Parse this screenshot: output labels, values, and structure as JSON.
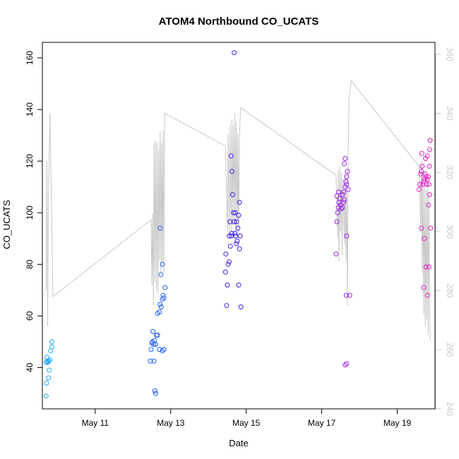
{
  "chart_data": {
    "type": "scatter",
    "title": "ATOM4 Northbound CO_UCATS",
    "xlabel": "Date",
    "ylabel": "CO_UCATS",
    "x_unit": "day of May",
    "xlim": [
      9.6,
      20.0
    ],
    "ylim": [
      24,
      166
    ],
    "y2lim": [
      240,
      364
    ],
    "x_ticks": [
      11,
      13,
      15,
      17,
      19
    ],
    "x_tick_labels": [
      "May 11",
      "May 13",
      "May 15",
      "May 17",
      "May 19"
    ],
    "y_ticks": [
      40,
      60,
      80,
      100,
      120,
      140,
      160
    ],
    "y2_ticks": [
      240,
      260,
      280,
      300,
      320,
      340,
      360
    ],
    "grid": false,
    "legend": "none",
    "colors": {
      "line": "#c8c8c8",
      "right_axis": "#c8c8c8",
      "frame": "#000000"
    },
    "series": [
      {
        "axis": "left",
        "kind": "points",
        "color": "#1aa9f5",
        "points": [
          [
            9.7,
            29
          ],
          [
            9.71,
            34
          ],
          [
            9.7,
            42
          ],
          [
            9.73,
            42.5
          ],
          [
            9.72,
            44
          ],
          [
            9.75,
            42
          ],
          [
            9.77,
            42.5
          ],
          [
            9.8,
            43
          ],
          [
            9.76,
            36
          ],
          [
            9.78,
            39
          ],
          [
            9.82,
            46.5
          ],
          [
            9.85,
            48
          ],
          [
            9.85,
            50
          ]
        ]
      },
      {
        "axis": "left",
        "kind": "points",
        "color": "#1f5af2",
        "points": [
          [
            12.46,
            42.5
          ],
          [
            12.48,
            47
          ],
          [
            12.5,
            49.5
          ],
          [
            12.52,
            50
          ],
          [
            12.53,
            54
          ],
          [
            12.55,
            49
          ],
          [
            12.57,
            50.5
          ],
          [
            12.6,
            49
          ],
          [
            12.56,
            42.5
          ],
          [
            12.62,
            52.5
          ],
          [
            12.65,
            52.5
          ],
          [
            12.58,
            31
          ],
          [
            12.6,
            30
          ],
          [
            12.65,
            61
          ],
          [
            12.7,
            61.5
          ],
          [
            12.72,
            64.5
          ],
          [
            12.75,
            63.5
          ],
          [
            12.78,
            66.5
          ],
          [
            12.8,
            68
          ],
          [
            12.82,
            67
          ],
          [
            12.85,
            71
          ],
          [
            12.74,
            76
          ],
          [
            12.78,
            80
          ],
          [
            12.72,
            94
          ],
          [
            12.7,
            47
          ],
          [
            12.78,
            46.5
          ],
          [
            12.82,
            47
          ]
        ]
      },
      {
        "axis": "left",
        "kind": "points",
        "color": "#3b20ee",
        "points": [
          [
            14.45,
            77
          ],
          [
            14.48,
            64
          ],
          [
            14.5,
            72
          ],
          [
            14.52,
            80
          ],
          [
            14.55,
            81
          ],
          [
            14.46,
            84
          ],
          [
            14.55,
            91
          ],
          [
            14.57,
            96.5
          ],
          [
            14.58,
            87
          ],
          [
            14.6,
            91
          ],
          [
            14.62,
            92
          ],
          [
            14.6,
            122
          ],
          [
            14.62,
            116
          ],
          [
            14.64,
            107
          ],
          [
            14.66,
            100
          ],
          [
            14.68,
            96.5
          ],
          [
            14.7,
            100
          ],
          [
            14.72,
            91
          ],
          [
            14.74,
            96.5
          ],
          [
            14.7,
            92
          ],
          [
            14.74,
            88
          ],
          [
            14.76,
            89
          ],
          [
            14.78,
            94
          ],
          [
            14.8,
            99
          ],
          [
            14.82,
            104
          ],
          [
            14.84,
            91
          ],
          [
            14.82,
            86
          ],
          [
            14.8,
            72
          ],
          [
            14.86,
            63.5
          ],
          [
            14.68,
            162
          ]
        ]
      },
      {
        "axis": "left",
        "kind": "points",
        "color": "#9a22e8",
        "points": [
          [
            17.38,
            84
          ],
          [
            17.4,
            96.5
          ],
          [
            17.42,
            100
          ],
          [
            17.44,
            102
          ],
          [
            17.46,
            104
          ],
          [
            17.48,
            105.5
          ],
          [
            17.4,
            106.5
          ],
          [
            17.45,
            108
          ],
          [
            17.5,
            103
          ],
          [
            17.52,
            101.5
          ],
          [
            17.55,
            102
          ],
          [
            17.58,
            104
          ],
          [
            17.6,
            105
          ],
          [
            17.55,
            107
          ],
          [
            17.58,
            108
          ],
          [
            17.62,
            110
          ],
          [
            17.64,
            112
          ],
          [
            17.66,
            114
          ],
          [
            17.68,
            116
          ],
          [
            17.6,
            119
          ],
          [
            17.62,
            121
          ],
          [
            17.66,
            111
          ],
          [
            17.7,
            109
          ],
          [
            17.66,
            91
          ],
          [
            17.65,
            68
          ],
          [
            17.62,
            41
          ],
          [
            17.66,
            41.5
          ],
          [
            17.74,
            68
          ]
        ]
      },
      {
        "axis": "left",
        "kind": "points",
        "color": "#e31cc4",
        "points": [
          [
            19.58,
            109
          ],
          [
            19.6,
            111
          ],
          [
            19.62,
            115
          ],
          [
            19.64,
            116
          ],
          [
            19.66,
            118
          ],
          [
            19.65,
            123
          ],
          [
            19.68,
            111
          ],
          [
            19.7,
            112
          ],
          [
            19.72,
            113
          ],
          [
            19.74,
            115
          ],
          [
            19.76,
            114
          ],
          [
            19.78,
            111
          ],
          [
            19.8,
            113
          ],
          [
            19.75,
            121
          ],
          [
            19.8,
            122
          ],
          [
            19.82,
            114
          ],
          [
            19.84,
            111
          ],
          [
            19.85,
            118
          ],
          [
            19.86,
            124.5
          ],
          [
            19.87,
            128
          ],
          [
            19.83,
            103
          ],
          [
            19.86,
            107
          ],
          [
            19.64,
            94
          ],
          [
            19.88,
            94
          ],
          [
            19.72,
            90
          ],
          [
            19.7,
            71
          ],
          [
            19.8,
            68
          ],
          [
            19.76,
            79
          ],
          [
            19.84,
            79
          ]
        ]
      },
      {
        "axis": "right",
        "kind": "line",
        "color": "#c8c8c8",
        "points": [
          [
            9.7,
            280
          ],
          [
            9.72,
            324
          ],
          [
            9.74,
            268
          ],
          [
            9.76,
            312
          ],
          [
            9.8,
            340
          ],
          [
            9.88,
            278
          ],
          [
            12.48,
            304
          ],
          [
            12.5,
            282
          ],
          [
            12.52,
            306
          ],
          [
            12.54,
            275
          ],
          [
            12.56,
            330
          ],
          [
            12.58,
            283
          ],
          [
            12.6,
            331
          ],
          [
            12.62,
            280
          ],
          [
            12.64,
            330
          ],
          [
            12.66,
            279
          ],
          [
            12.68,
            328
          ],
          [
            12.7,
            290
          ],
          [
            12.72,
            334
          ],
          [
            12.74,
            286
          ],
          [
            12.76,
            330
          ],
          [
            12.78,
            289
          ],
          [
            12.8,
            334
          ],
          [
            12.82,
            286
          ],
          [
            12.84,
            340
          ],
          [
            14.45,
            329
          ],
          [
            14.5,
            300
          ],
          [
            14.52,
            333
          ],
          [
            14.55,
            298
          ],
          [
            14.57,
            336
          ],
          [
            14.6,
            300
          ],
          [
            14.62,
            338
          ],
          [
            14.64,
            302
          ],
          [
            14.66,
            336
          ],
          [
            14.68,
            304
          ],
          [
            14.7,
            340
          ],
          [
            14.72,
            300
          ],
          [
            14.74,
            337
          ],
          [
            14.76,
            298
          ],
          [
            14.78,
            333
          ],
          [
            14.8,
            299
          ],
          [
            14.82,
            332
          ],
          [
            14.85,
            342
          ],
          [
            17.38,
            319
          ],
          [
            17.42,
            298
          ],
          [
            17.44,
            321
          ],
          [
            17.46,
            290
          ],
          [
            17.48,
            322
          ],
          [
            17.5,
            300
          ],
          [
            17.52,
            320
          ],
          [
            17.54,
            292
          ],
          [
            17.56,
            318
          ],
          [
            17.6,
            296
          ],
          [
            17.62,
            320
          ],
          [
            17.64,
            290
          ],
          [
            17.66,
            314
          ],
          [
            17.68,
            275
          ],
          [
            17.7,
            326
          ],
          [
            17.72,
            344
          ],
          [
            17.78,
            351
          ],
          [
            19.58,
            322
          ],
          [
            19.62,
            300
          ],
          [
            19.64,
            324
          ],
          [
            19.66,
            286
          ],
          [
            19.68,
            319
          ],
          [
            19.7,
            272
          ],
          [
            19.72,
            316
          ],
          [
            19.74,
            268
          ],
          [
            19.76,
            314
          ],
          [
            19.78,
            270
          ],
          [
            19.8,
            318
          ],
          [
            19.82,
            265
          ],
          [
            19.84,
            313
          ],
          [
            19.86,
            270
          ],
          [
            19.88,
            263
          ]
        ]
      }
    ]
  }
}
